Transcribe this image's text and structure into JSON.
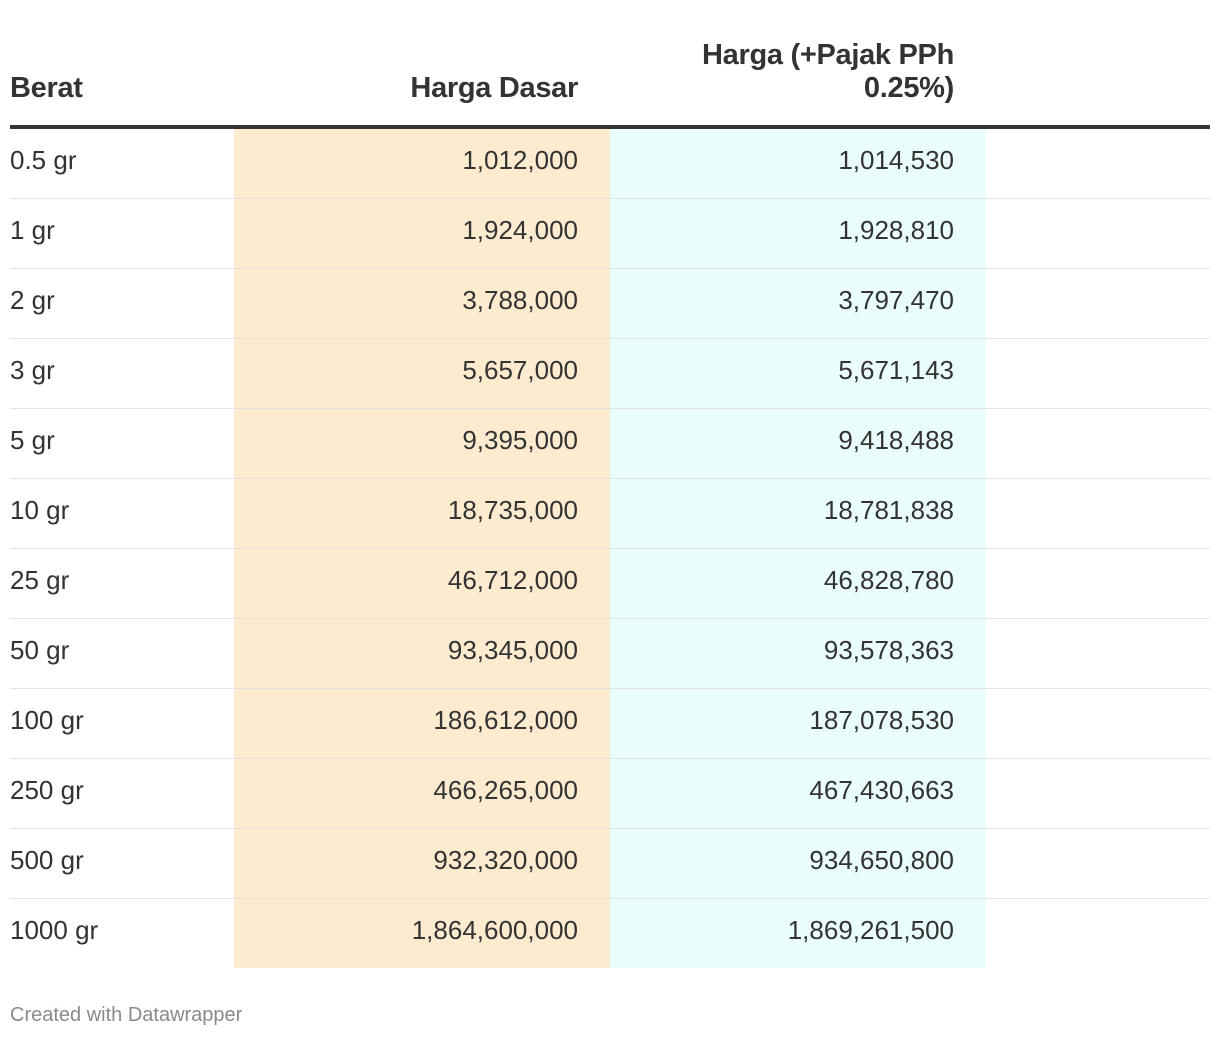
{
  "chart_data": {
    "type": "table",
    "columns": [
      "Berat",
      "Harga Dasar",
      "Harga (+Pajak PPh 0.25%)"
    ],
    "column_colors": [
      "#ffffff",
      "#fdebd0",
      "#e8fdfc"
    ],
    "rows": [
      [
        "0.5 gr",
        "1,012,000",
        "1,014,530"
      ],
      [
        "1 gr",
        "1,924,000",
        "1,928,810"
      ],
      [
        "2 gr",
        "3,788,000",
        "3,797,470"
      ],
      [
        "3 gr",
        "5,657,000",
        "5,671,143"
      ],
      [
        "5 gr",
        "9,395,000",
        "9,418,488"
      ],
      [
        "10 gr",
        "18,735,000",
        "18,781,838"
      ],
      [
        "25 gr",
        "46,712,000",
        "46,828,780"
      ],
      [
        "50 gr",
        "93,345,000",
        "93,578,363"
      ],
      [
        "100 gr",
        "186,612,000",
        "187,078,530"
      ],
      [
        "250 gr",
        "466,265,000",
        "467,430,663"
      ],
      [
        "500 gr",
        "932,320,000",
        "934,650,800"
      ],
      [
        "1000 gr",
        "1,864,600,000",
        "1,869,261,500"
      ]
    ]
  },
  "footer": {
    "credit": "Created with Datawrapper"
  }
}
